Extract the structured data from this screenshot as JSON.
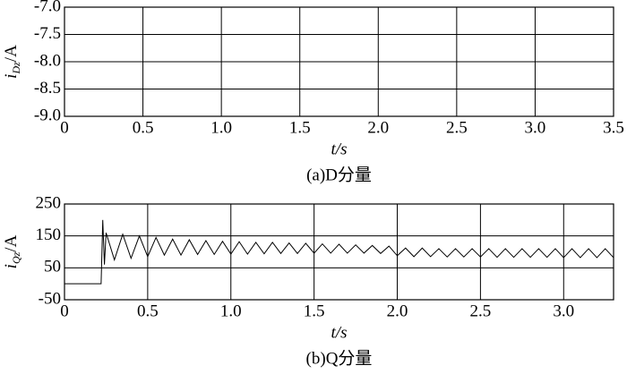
{
  "chart_data": [
    {
      "type": "line",
      "caption": "(a)D分量",
      "xlabel": "t/s",
      "ylabel": {
        "symbol": "i",
        "subscript": "Dz",
        "unit": "/A"
      },
      "xlim": [
        0,
        3.5
      ],
      "xticks": [
        0,
        0.5,
        {
          "value": 1,
          "label": "1.0"
        },
        1.5,
        {
          "value": 2,
          "label": "2.0"
        },
        2.5,
        {
          "value": 3,
          "label": "3.0"
        },
        3.5
      ],
      "ylim": [
        -9,
        -7
      ],
      "yticks": [
        {
          "value": -9,
          "label": "-9.0"
        },
        -8.5,
        {
          "value": -8,
          "label": "-8.0"
        },
        -7.5,
        {
          "value": -7,
          "label": "-7.0"
        }
      ],
      "grid": true,
      "series": []
    },
    {
      "type": "line",
      "caption": "(b)Q分量",
      "xlabel": "t/s",
      "ylabel": {
        "symbol": "i",
        "subscript": "Qz",
        "unit": "/A"
      },
      "xlim": [
        0,
        3.3
      ],
      "xticks": [
        0,
        0.5,
        {
          "value": 1,
          "label": "1.0"
        },
        1.5,
        {
          "value": 2,
          "label": "2.0"
        },
        2.5,
        {
          "value": 3,
          "label": "3.0"
        }
      ],
      "ylim": [
        -50,
        250
      ],
      "yticks": [
        -50,
        50,
        150,
        250
      ],
      "grid": true,
      "series": [
        {
          "color": "#000000",
          "x": [
            0,
            0.22,
            0.23,
            0.24,
            0.25,
            0.3,
            0.35,
            0.4,
            0.45,
            0.5,
            0.55,
            0.6,
            0.65,
            0.7,
            0.75,
            0.8,
            0.85,
            0.9,
            0.95,
            1.0,
            1.05,
            1.1,
            1.15,
            1.2,
            1.25,
            1.3,
            1.35,
            1.4,
            1.45,
            1.5,
            1.55,
            1.6,
            1.65,
            1.7,
            1.75,
            1.8,
            1.85,
            1.9,
            1.95,
            2.0,
            2.05,
            2.1,
            2.15,
            2.2,
            2.25,
            2.3,
            2.35,
            2.4,
            2.45,
            2.5,
            2.55,
            2.6,
            2.65,
            2.7,
            2.75,
            2.8,
            2.85,
            2.9,
            2.95,
            3.0,
            3.05,
            3.1,
            3.15,
            3.2,
            3.25,
            3.3
          ],
          "values": [
            0,
            0,
            200,
            60,
            160,
            75,
            155,
            80,
            150,
            85,
            145,
            90,
            140,
            90,
            138,
            92,
            135,
            92,
            133,
            93,
            132,
            93,
            130,
            94,
            130,
            95,
            128,
            95,
            127,
            96,
            125,
            96,
            124,
            96,
            122,
            96,
            120,
            95,
            118,
            88,
            112,
            85,
            112,
            85,
            110,
            84,
            110,
            84,
            110,
            84,
            110,
            83,
            110,
            83,
            110,
            83,
            110,
            83,
            110,
            82,
            110,
            82,
            110,
            82,
            110,
            82
          ]
        }
      ]
    }
  ]
}
